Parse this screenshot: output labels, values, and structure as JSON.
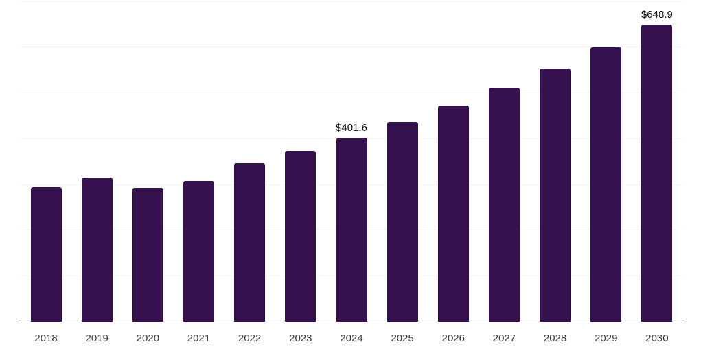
{
  "chart_data": {
    "type": "bar",
    "title": "",
    "xlabel": "",
    "ylabel": "",
    "categories": [
      "2018",
      "2019",
      "2020",
      "2021",
      "2022",
      "2023",
      "2024",
      "2025",
      "2026",
      "2027",
      "2028",
      "2029",
      "2030"
    ],
    "values": [
      294.2,
      315.1,
      292.0,
      307.6,
      346.5,
      373.5,
      401.6,
      435.1,
      471.3,
      510.6,
      553.1,
      599.2,
      648.9
    ],
    "point_labels": {
      "2024": "$401.6",
      "2030": "$648.9"
    },
    "ylim": [
      0,
      700
    ],
    "grid_step": 100,
    "grid_on": true,
    "legend_position": "none",
    "colors": {
      "bar": "#351150",
      "gridline": "#f2f1f4",
      "axis_line": "#2e2e2e",
      "tick_label": "#3c3c3c",
      "value_label": "#0c0c0c",
      "background": "#ffffff"
    }
  }
}
